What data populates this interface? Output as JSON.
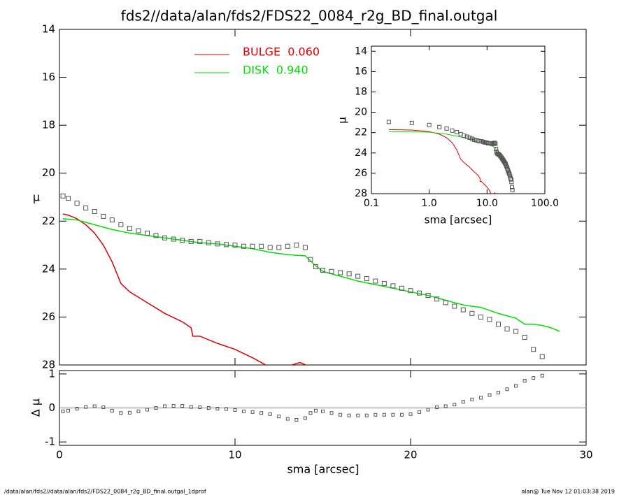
{
  "chart_data": [
    {
      "type": "line",
      "title": "fds2//data/alan/fds2/FDS22_0084_r2g_BD_final.outgal",
      "ylabel": "μ",
      "xlim": [
        0,
        30
      ],
      "xticks": [
        0,
        10,
        20,
        30
      ],
      "ylim": [
        28,
        14
      ],
      "yticks": [
        14,
        16,
        18,
        20,
        22,
        24,
        26,
        28
      ],
      "points": {
        "color": "#555555",
        "x": [
          0.2,
          0.5,
          1,
          1.5,
          2,
          2.5,
          3,
          3.5,
          4,
          4.5,
          5,
          5.5,
          6,
          6.5,
          7,
          7.5,
          8,
          8.5,
          9,
          9.5,
          10,
          10.5,
          11,
          11.5,
          12,
          12.5,
          13,
          13.5,
          14,
          14.3,
          14.6,
          15,
          15.5,
          16,
          16.5,
          17,
          17.5,
          18,
          18.5,
          19,
          19.5,
          20,
          20.5,
          21,
          21.5,
          22,
          22.5,
          23,
          23.5,
          24,
          24.5,
          25,
          25.5,
          26,
          26.5,
          27,
          27.5
        ],
        "values": [
          20.95,
          21.05,
          21.25,
          21.45,
          21.6,
          21.8,
          21.95,
          22.15,
          22.3,
          22.4,
          22.5,
          22.6,
          22.7,
          22.75,
          22.8,
          22.85,
          22.85,
          22.9,
          22.95,
          22.98,
          23.0,
          23.05,
          23.05,
          23.05,
          23.1,
          23.1,
          23.05,
          23.0,
          23.1,
          23.6,
          23.9,
          24.05,
          24.1,
          24.15,
          24.2,
          24.3,
          24.4,
          24.5,
          24.6,
          24.7,
          24.8,
          24.9,
          25.0,
          25.1,
          25.25,
          25.4,
          25.55,
          25.7,
          25.85,
          26.0,
          26.1,
          26.3,
          26.5,
          26.6,
          26.85,
          27.35,
          27.65
        ]
      },
      "series": [
        {
          "name": "BULGE  0.060",
          "color": "#dd0000",
          "x": [
            0.2,
            0.5,
            1,
            1.5,
            2,
            2.5,
            3,
            3.5,
            4,
            5,
            6,
            7,
            7.5,
            7.6,
            8,
            9,
            10,
            11,
            12,
            12.5,
            13,
            13.7,
            14.2,
            14.5
          ],
          "values": [
            21.7,
            21.75,
            21.9,
            22.15,
            22.5,
            23.0,
            23.7,
            24.6,
            24.95,
            25.4,
            25.85,
            26.2,
            26.45,
            26.8,
            26.8,
            27.1,
            27.35,
            27.7,
            28.1,
            28.3,
            28.05,
            27.9,
            28.05,
            28.3
          ]
        },
        {
          "name": "DISK  0.940",
          "color": "#00dd00",
          "x": [
            0.2,
            1,
            2,
            3,
            4,
            5,
            6,
            7,
            8,
            9,
            10,
            11,
            12,
            13,
            14,
            14.5,
            15,
            16,
            17,
            18,
            19,
            20,
            21,
            22,
            23,
            24,
            25,
            26,
            26.5,
            27,
            27.5,
            28,
            28.5
          ],
          "values": [
            21.9,
            21.95,
            22.15,
            22.35,
            22.5,
            22.6,
            22.7,
            22.8,
            22.9,
            22.95,
            23.05,
            23.15,
            23.3,
            23.4,
            23.45,
            23.8,
            24.1,
            24.3,
            24.5,
            24.65,
            24.8,
            24.95,
            25.1,
            25.3,
            25.5,
            25.6,
            25.85,
            26.05,
            26.3,
            26.3,
            26.35,
            26.45,
            26.6
          ]
        }
      ]
    },
    {
      "type": "scatter",
      "ylabel": "Δ μ",
      "xlabel": "sma [arcsec]",
      "color": "#555555",
      "xlim": [
        0,
        30
      ],
      "xticks": [
        0,
        10,
        20,
        30
      ],
      "ylim": [
        -1.1,
        1.1
      ],
      "yticks": [
        -1,
        0,
        1
      ],
      "reference_line": 0,
      "x": [
        0.2,
        0.5,
        1,
        1.5,
        2,
        2.5,
        3,
        3.5,
        4,
        4.5,
        5,
        5.5,
        6,
        6.5,
        7,
        7.5,
        8,
        8.5,
        9,
        9.5,
        10,
        10.5,
        11,
        11.5,
        12,
        12.5,
        13,
        13.5,
        14,
        14.3,
        14.6,
        15,
        15.5,
        16,
        16.5,
        17,
        17.5,
        18,
        18.5,
        19,
        19.5,
        20,
        20.5,
        21,
        21.5,
        22,
        22.5,
        23,
        23.5,
        24,
        24.5,
        25,
        25.5,
        26,
        26.5,
        27,
        27.5
      ],
      "values": [
        -0.1,
        -0.08,
        -0.02,
        0.03,
        0.05,
        0.02,
        -0.08,
        -0.15,
        -0.14,
        -0.1,
        -0.05,
        0.0,
        0.05,
        0.06,
        0.06,
        0.03,
        0.02,
        0.0,
        -0.02,
        -0.03,
        -0.06,
        -0.1,
        -0.12,
        -0.15,
        -0.18,
        -0.25,
        -0.32,
        -0.35,
        -0.3,
        -0.15,
        -0.08,
        -0.1,
        -0.15,
        -0.2,
        -0.22,
        -0.22,
        -0.22,
        -0.2,
        -0.2,
        -0.2,
        -0.2,
        -0.18,
        -0.12,
        -0.05,
        0.02,
        0.05,
        0.1,
        0.18,
        0.25,
        0.3,
        0.38,
        0.45,
        0.55,
        0.65,
        0.8,
        0.88,
        0.95
      ]
    },
    {
      "type": "line",
      "log_x": true,
      "ylabel": "μ",
      "xlabel": "sma [arcsec]",
      "xlim": [
        0.1,
        100
      ],
      "xticks": [
        0.1,
        {
          "value": 1,
          "label": "1.0"
        },
        {
          "value": 10,
          "label": "10.0"
        },
        {
          "value": 100,
          "label": "100.0"
        }
      ],
      "ylim": [
        28,
        13.5
      ],
      "yticks": [
        14,
        16,
        18,
        20,
        22,
        24,
        26,
        28
      ]
    }
  ],
  "footer": {
    "left": "/data/alan/fds2//data/alan/fds2/FDS22_0084_r2g_BD_final.outgal_1dprof",
    "right": "alan@  Tue Nov 12 01:03:38 2019"
  }
}
